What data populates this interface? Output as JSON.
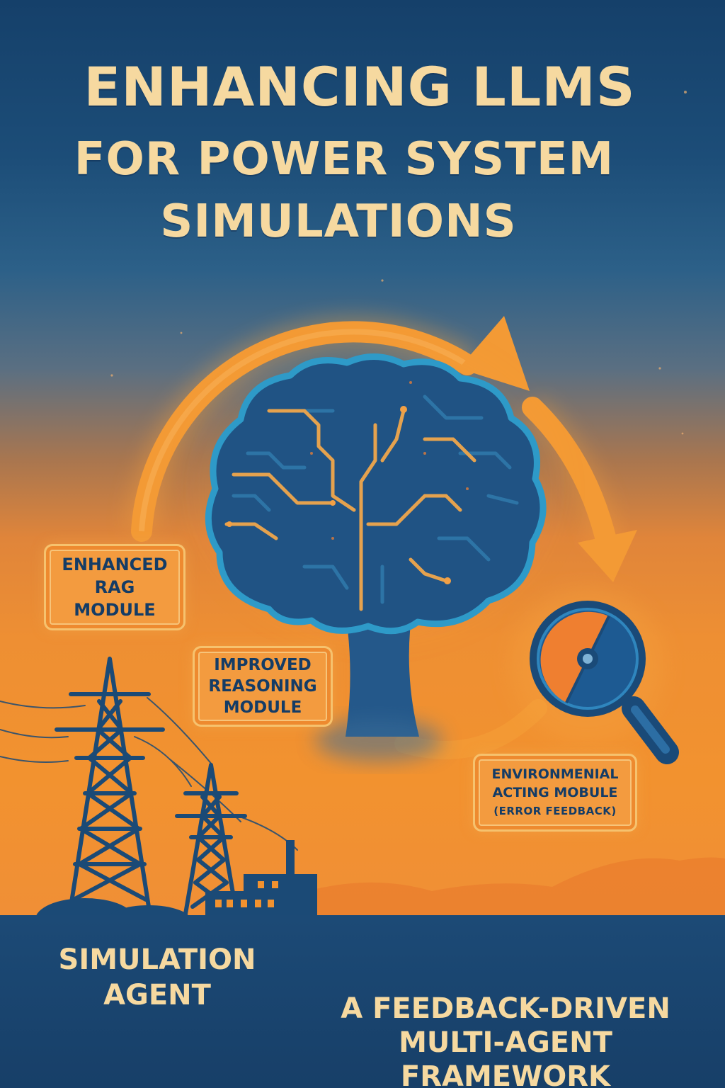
{
  "title": {
    "line1": "ENHANCING LLMS",
    "line2": "FOR POWER SYSTEM",
    "line3": "SIMULATIONS"
  },
  "modules": {
    "rag": {
      "line1": "ENHANCED",
      "line2": "RAG",
      "line3": "MODULE"
    },
    "reasoning": {
      "line1": "IMPROVED",
      "line2": "REASONING",
      "line3": "MODULE"
    },
    "environmental": {
      "line1": "ENVIRONMENIAL",
      "line2": "ACTING MOBULE",
      "line3": "(ERROR  FEEDBACK)"
    }
  },
  "footer": {
    "left": {
      "line1": "SIMULATION",
      "line2": "AGENT"
    },
    "right": {
      "line1": "A FEEDBACK-DRIVEN",
      "line2": "MULTI-AGENT",
      "line3": "FRAMEWORK"
    }
  },
  "icons": {
    "brain": "circuit-brain-icon",
    "loop": "feedback-loop-arrow-icon",
    "magnifier": "magnifying-glass-gauge-icon",
    "tower": "transmission-tower-icon",
    "factory": "power-plant-icon"
  },
  "colors": {
    "navy": "#1a4a78",
    "orange": "#f2922f",
    "cream": "#f6d9a0",
    "accent": "#f5a23a"
  }
}
